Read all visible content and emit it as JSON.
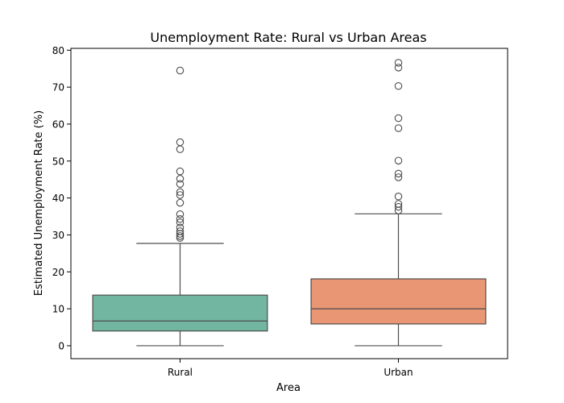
{
  "chart_data": {
    "type": "box",
    "title": "Unemployment Rate: Rural vs Urban Areas",
    "xlabel": "Area",
    "ylabel": "Estimated Unemployment Rate (%)",
    "categories": [
      "Rural",
      "Urban"
    ],
    "ylim": [
      -3.5,
      80.5
    ],
    "yticks": [
      0,
      10,
      20,
      30,
      40,
      50,
      60,
      70,
      80
    ],
    "grid": false,
    "legend": "none",
    "boxes": [
      {
        "category": "Rural",
        "color": "#72b6a1",
        "whisker_low": 0,
        "q1": 4,
        "median": 6.7,
        "q3": 13.7,
        "whisker_high": 27.7,
        "outliers": [
          29.2,
          29.7,
          30.3,
          31.0,
          32.0,
          33.4,
          34.3,
          35.6,
          38.7,
          40.8,
          41.6,
          43.8,
          45.2,
          47.2,
          53.2,
          55.1,
          74.5
        ]
      },
      {
        "category": "Urban",
        "color": "#e99675",
        "whisker_low": 0,
        "q1": 5.9,
        "median": 10,
        "q3": 18.1,
        "whisker_high": 35.7,
        "outliers": [
          36.6,
          37.6,
          38.4,
          40.4,
          45.6,
          46.6,
          50.1,
          58.9,
          61.6,
          70.3,
          75.3,
          76.6
        ]
      }
    ]
  }
}
